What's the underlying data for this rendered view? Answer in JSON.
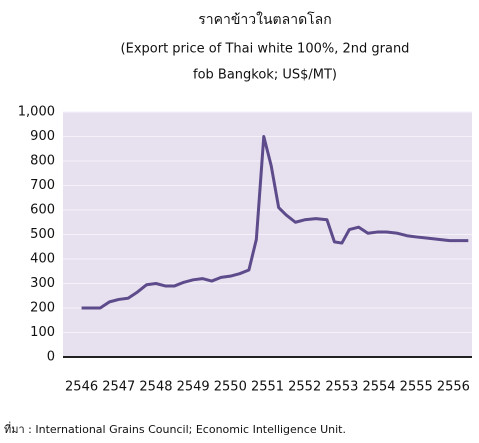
{
  "chart_data": {
    "type": "line",
    "title": "ราคาข้าวในตลาดโลก",
    "subtitle": [
      "(Export price of Thai white 100%, 2nd  grand",
      "fob Bangkok; US$/MT)"
    ],
    "source": "ที่มา : International Grains Council; Economic Intelligence Unit.",
    "x": [
      2546.0,
      2546.25,
      2546.5,
      2546.75,
      2547.0,
      2547.25,
      2547.5,
      2547.75,
      2548.0,
      2548.25,
      2548.5,
      2548.75,
      2549.0,
      2549.25,
      2549.5,
      2549.75,
      2550.0,
      2550.25,
      2550.5,
      2550.7,
      2550.9,
      2551.1,
      2551.3,
      2551.5,
      2551.75,
      2552.0,
      2552.3,
      2552.6,
      2552.8,
      2553.0,
      2553.2,
      2553.45,
      2553.7,
      2553.95,
      2554.2,
      2554.5,
      2554.75,
      2555.0,
      2555.3,
      2555.6,
      2555.9,
      2556.4
    ],
    "series": [
      {
        "name": "Export price",
        "color": "#5e4b8b",
        "values": [
          200,
          200,
          200,
          225,
          235,
          240,
          265,
          295,
          300,
          290,
          290,
          305,
          315,
          320,
          310,
          325,
          330,
          340,
          355,
          480,
          900,
          780,
          610,
          580,
          550,
          560,
          565,
          560,
          470,
          465,
          520,
          530,
          505,
          510,
          510,
          505,
          495,
          490,
          485,
          480,
          475,
          475
        ]
      }
    ],
    "xlim": [
      2545.5,
      2556.5
    ],
    "xticks": [
      2546,
      2547,
      2548,
      2549,
      2550,
      2551,
      2552,
      2553,
      2554,
      2555,
      2556
    ],
    "ylim": [
      0,
      1000
    ],
    "yticks": [
      0,
      100,
      200,
      300,
      400,
      500,
      600,
      700,
      800,
      900,
      {
        "value": 1000,
        "label": "1,000"
      }
    ],
    "grid": true,
    "background": "#e7e1ef"
  }
}
